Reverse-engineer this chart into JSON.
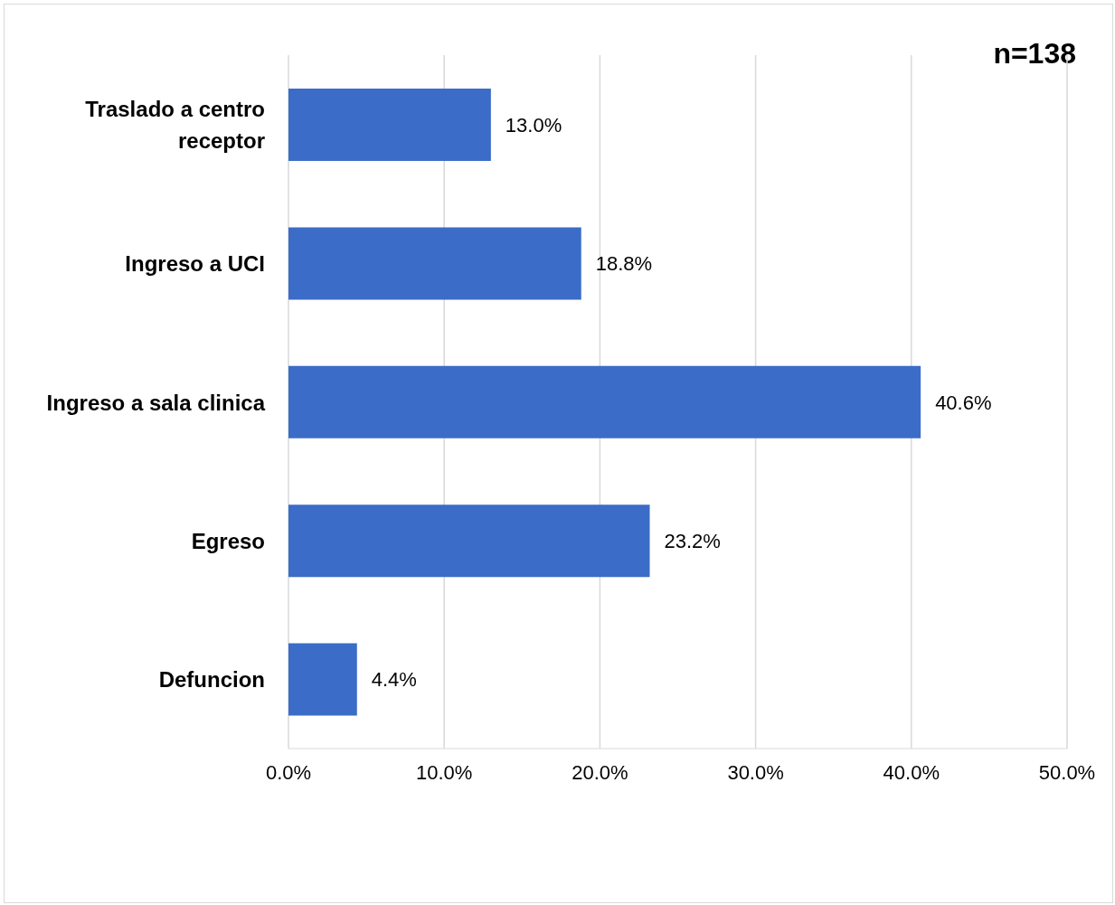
{
  "chart_data": {
    "type": "bar",
    "orientation": "horizontal",
    "categories": [
      "Traslado a centro receptor",
      "Ingreso a UCI",
      "Ingreso a sala clinica",
      "Egreso",
      "Defuncion"
    ],
    "values": [
      13.0,
      18.8,
      40.6,
      23.2,
      4.4
    ],
    "value_labels": [
      "13.0%",
      "18.8%",
      "40.6%",
      "23.2%",
      "4.4%"
    ],
    "color": "#3b6cc7",
    "xlim": [
      0,
      50
    ],
    "xticks": [
      {
        "value": 0,
        "label": "0.0%"
      },
      {
        "value": 10,
        "label": "10.0%"
      },
      {
        "value": 20,
        "label": "20.0%"
      },
      {
        "value": 30,
        "label": "30.0%"
      },
      {
        "value": 40,
        "label": "40.0%"
      },
      {
        "value": 50,
        "label": "50.0%"
      }
    ],
    "grid": "x",
    "annotations": [
      "n=138"
    ]
  }
}
